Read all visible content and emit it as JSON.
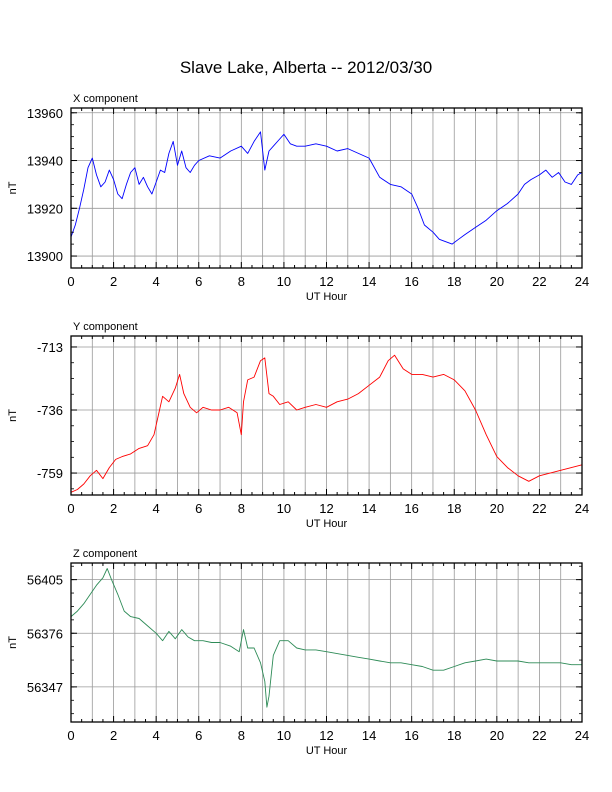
{
  "title": "Slave Lake, Alberta -- 2012/03/30",
  "colors": {
    "x": "#0000ff",
    "y": "#ff0000",
    "z": "#2e8b57",
    "grid": "#999999",
    "frame": "#000000"
  },
  "chart_data": [
    {
      "type": "line",
      "panel_title": "X component",
      "xlabel": "UT Hour",
      "ylabel": "nT",
      "xlim": [
        0,
        24
      ],
      "ylim": [
        13895,
        13962
      ],
      "xticks": [
        0,
        2,
        4,
        6,
        8,
        10,
        12,
        14,
        16,
        18,
        20,
        22,
        24
      ],
      "yticks": [
        13900,
        13920,
        13940,
        13960
      ],
      "color": "#0000ff",
      "x": [
        0,
        0.2,
        0.4,
        0.6,
        0.8,
        1.0,
        1.2,
        1.4,
        1.6,
        1.8,
        2.0,
        2.2,
        2.4,
        2.6,
        2.8,
        3.0,
        3.2,
        3.4,
        3.6,
        3.8,
        4.0,
        4.2,
        4.4,
        4.6,
        4.8,
        5.0,
        5.2,
        5.4,
        5.6,
        5.8,
        6.0,
        6.5,
        7.0,
        7.5,
        8.0,
        8.3,
        8.6,
        8.9,
        9.1,
        9.3,
        9.5,
        9.8,
        10.0,
        10.3,
        10.6,
        11.0,
        11.5,
        12.0,
        12.5,
        13.0,
        13.5,
        14.0,
        14.5,
        15.0,
        15.5,
        16.0,
        16.3,
        16.6,
        17.0,
        17.3,
        17.6,
        17.9,
        18.2,
        18.5,
        19.0,
        19.5,
        20.0,
        20.5,
        21.0,
        21.3,
        21.6,
        22.0,
        22.3,
        22.6,
        22.9,
        23.2,
        23.5,
        23.8,
        24.0
      ],
      "y": [
        13908,
        13913,
        13920,
        13928,
        13937,
        13941,
        13934,
        13929,
        13931,
        13936,
        13932,
        13926,
        13924,
        13930,
        13935,
        13937,
        13930,
        13933,
        13929,
        13926,
        13931,
        13936,
        13935,
        13943,
        13948,
        13938,
        13944,
        13937,
        13935,
        13938,
        13940,
        13942,
        13941,
        13944,
        13946,
        13943,
        13948,
        13952,
        13936,
        13944,
        13946,
        13949,
        13951,
        13947,
        13946,
        13946,
        13947,
        13946,
        13944,
        13945,
        13943,
        13941,
        13933,
        13930,
        13929,
        13926,
        13920,
        13913,
        13910,
        13907,
        13906,
        13905,
        13907,
        13909,
        13912,
        13915,
        13919,
        13922,
        13926,
        13930,
        13932,
        13934,
        13936,
        13933,
        13935,
        13931,
        13930,
        13934,
        13935
      ]
    },
    {
      "type": "line",
      "panel_title": "Y component",
      "xlabel": "UT Hour",
      "ylabel": "nT",
      "xlim": [
        0,
        24
      ],
      "ylim": [
        -767,
        -709
      ],
      "xticks": [
        0,
        2,
        4,
        6,
        8,
        10,
        12,
        14,
        16,
        18,
        20,
        22,
        24
      ],
      "yticks": [
        -713,
        -736,
        -759
      ],
      "color": "#ff0000",
      "x": [
        0,
        0.3,
        0.6,
        0.9,
        1.2,
        1.5,
        1.8,
        2.1,
        2.4,
        2.8,
        3.2,
        3.6,
        3.9,
        4.1,
        4.3,
        4.6,
        4.9,
        5.1,
        5.3,
        5.6,
        5.9,
        6.2,
        6.6,
        7.0,
        7.4,
        7.8,
        8.0,
        8.1,
        8.3,
        8.6,
        8.9,
        9.1,
        9.3,
        9.5,
        9.8,
        10.2,
        10.6,
        11.0,
        11.5,
        12.0,
        12.5,
        13.0,
        13.5,
        14.0,
        14.5,
        14.9,
        15.2,
        15.6,
        16.0,
        16.5,
        17.0,
        17.5,
        18.0,
        18.5,
        19.0,
        19.5,
        20.0,
        20.5,
        21.0,
        21.5,
        22.0,
        22.5,
        23.0,
        23.5,
        24.0
      ],
      "y": [
        -766,
        -765,
        -763,
        -760,
        -758,
        -761,
        -757,
        -754,
        -753,
        -752,
        -750,
        -749,
        -745,
        -738,
        -731,
        -733,
        -728,
        -723,
        -730,
        -735,
        -737,
        -735,
        -736,
        -736,
        -735,
        -737,
        -745,
        -733,
        -725,
        -724,
        -718,
        -717,
        -730,
        -731,
        -734,
        -733,
        -736,
        -735,
        -734,
        -735,
        -733,
        -732,
        -730,
        -727,
        -724,
        -718,
        -716,
        -721,
        -723,
        -723,
        -724,
        -723,
        -725,
        -729,
        -736,
        -745,
        -753,
        -757,
        -760,
        -762,
        -760,
        -759,
        -758,
        -757,
        -756
      ]
    },
    {
      "type": "line",
      "panel_title": "Z component",
      "xlabel": "UT Hour",
      "ylabel": "nT",
      "xlim": [
        0,
        24
      ],
      "ylim": [
        56328,
        56414
      ],
      "xticks": [
        0,
        2,
        4,
        6,
        8,
        10,
        12,
        14,
        16,
        18,
        20,
        22,
        24
      ],
      "yticks": [
        56405,
        56376,
        56347
      ],
      "color": "#2e8b57",
      "x": [
        0,
        0.3,
        0.6,
        0.9,
        1.2,
        1.5,
        1.7,
        1.9,
        2.2,
        2.5,
        2.8,
        3.2,
        3.6,
        4.0,
        4.3,
        4.6,
        4.9,
        5.2,
        5.5,
        5.8,
        6.2,
        6.6,
        7.0,
        7.5,
        7.9,
        8.1,
        8.3,
        8.6,
        8.9,
        9.1,
        9.2,
        9.3,
        9.5,
        9.8,
        10.2,
        10.6,
        11.0,
        11.5,
        12.0,
        12.5,
        13.0,
        13.5,
        14.0,
        14.5,
        15.0,
        15.5,
        16.0,
        16.5,
        17.0,
        17.5,
        18.0,
        18.5,
        19.0,
        19.5,
        20.0,
        20.5,
        21.0,
        21.5,
        22.0,
        22.5,
        23.0,
        23.5,
        24.0
      ],
      "y": [
        56385,
        56388,
        56392,
        56397,
        56402,
        56406,
        56411,
        56405,
        56397,
        56388,
        56385,
        56384,
        56380,
        56376,
        56372,
        56377,
        56373,
        56378,
        56374,
        56372,
        56372,
        56371,
        56371,
        56369,
        56366,
        56378,
        56368,
        56368,
        56360,
        56350,
        56336,
        56342,
        56364,
        56372,
        56372,
        56368,
        56367,
        56367,
        56366,
        56365,
        56364,
        56363,
        56362,
        56361,
        56360,
        56360,
        56359,
        56358,
        56356,
        56356,
        56358,
        56360,
        56361,
        56362,
        56361,
        56361,
        56361,
        56360,
        56360,
        56360,
        56360,
        56359,
        56359
      ]
    }
  ]
}
